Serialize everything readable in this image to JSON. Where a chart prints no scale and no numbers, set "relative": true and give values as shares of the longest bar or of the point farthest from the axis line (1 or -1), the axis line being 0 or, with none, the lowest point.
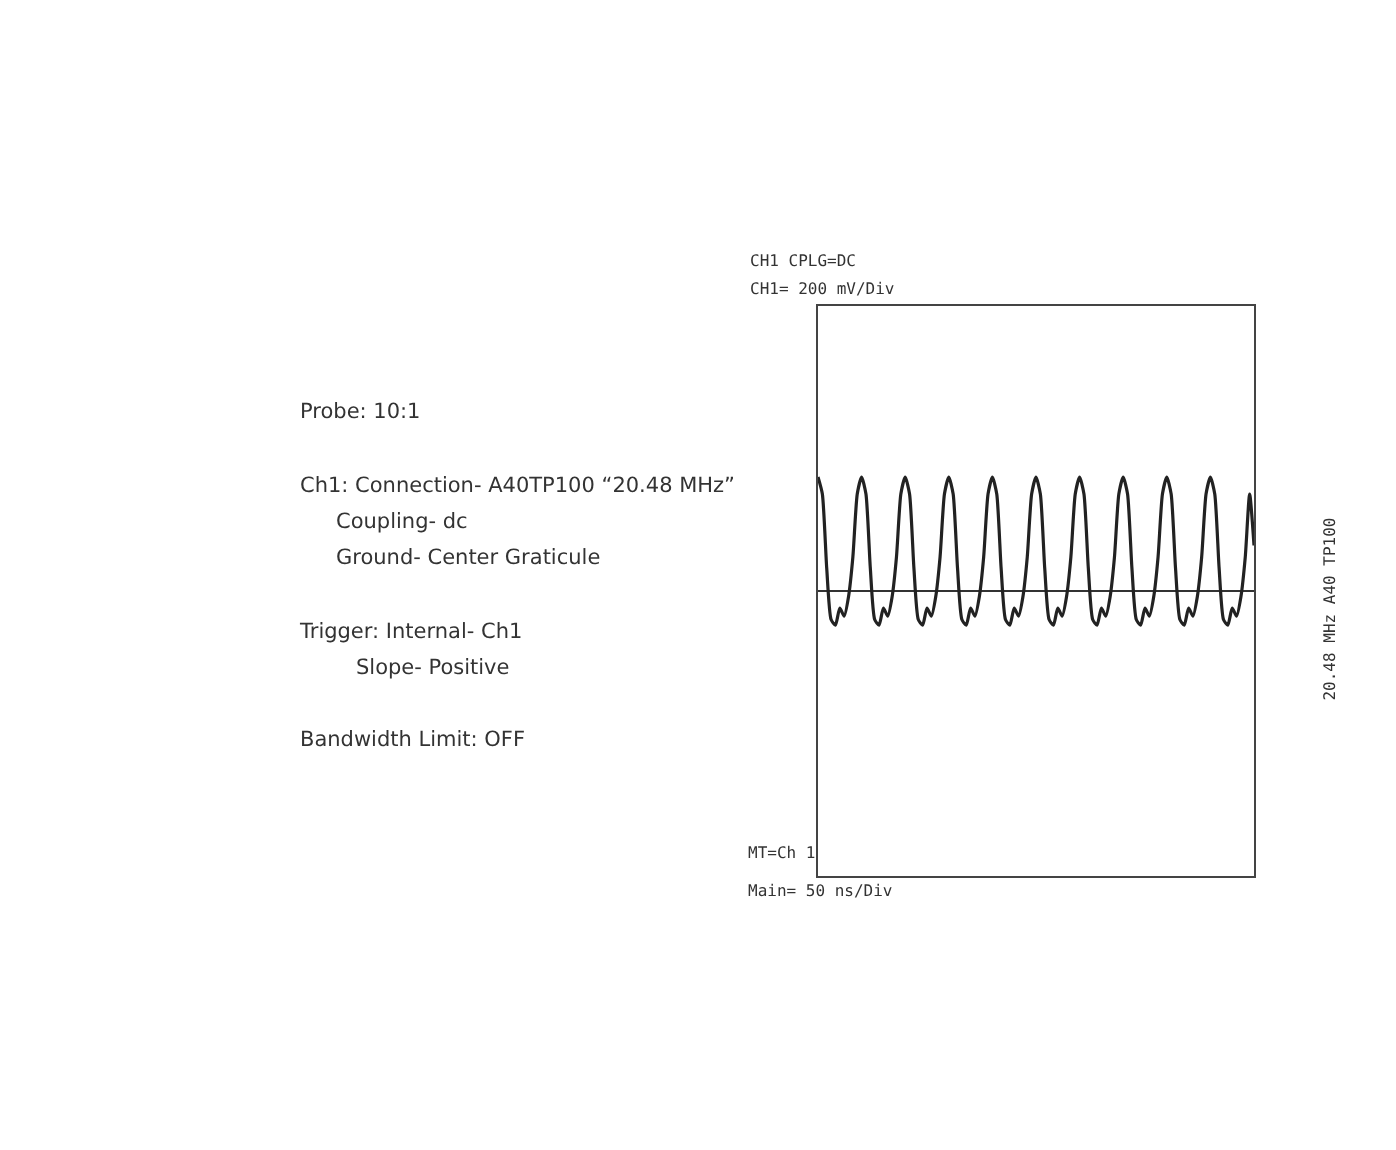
{
  "chart_data": {
    "type": "line",
    "title": "CH1 CPLG=DC",
    "subtitle": "CH1= 200 mV/Div",
    "relative": true,
    "color": "#222222",
    "categories": [
      null,
      null,
      null,
      null,
      null,
      null,
      null,
      null,
      null,
      null,
      null,
      null,
      null,
      null,
      null,
      null,
      null,
      null,
      null,
      null,
      null,
      null,
      null,
      null,
      null,
      null,
      null,
      null,
      null,
      null,
      null,
      null,
      null,
      null,
      null,
      null,
      null,
      null,
      null,
      null,
      null,
      null,
      null,
      null,
      null,
      null,
      null,
      null,
      null,
      null,
      null,
      null,
      null,
      null,
      null,
      null,
      null,
      null,
      null,
      null,
      null,
      null,
      null,
      null,
      null,
      null,
      null,
      null,
      null,
      null,
      null,
      null,
      null,
      null,
      null,
      null,
      null,
      null,
      null,
      null,
      null,
      null,
      null,
      null,
      null,
      null,
      null,
      null,
      null,
      null,
      null,
      null,
      null,
      null,
      null,
      null,
      null,
      null,
      null,
      null,
      null
    ],
    "values": [
      1.0,
      0.85,
      0.2,
      -0.25,
      -0.3,
      -0.15,
      -0.22,
      -0.05,
      0.3,
      0.85,
      1.0,
      0.85,
      0.2,
      -0.25,
      -0.3,
      -0.15,
      -0.22,
      -0.05,
      0.3,
      0.85,
      1.0,
      0.85,
      0.2,
      -0.25,
      -0.3,
      -0.15,
      -0.22,
      -0.05,
      0.3,
      0.85,
      1.0,
      0.85,
      0.2,
      -0.25,
      -0.3,
      -0.15,
      -0.22,
      -0.05,
      0.3,
      0.85,
      1.0,
      0.85,
      0.2,
      -0.25,
      -0.3,
      -0.15,
      -0.22,
      -0.05,
      0.3,
      0.85,
      1.0,
      0.85,
      0.2,
      -0.25,
      -0.3,
      -0.15,
      -0.22,
      -0.05,
      0.3,
      0.85,
      1.0,
      0.85,
      0.2,
      -0.25,
      -0.3,
      -0.15,
      -0.22,
      -0.05,
      0.3,
      0.85,
      1.0,
      0.85,
      0.2,
      -0.25,
      -0.3,
      -0.15,
      -0.22,
      -0.05,
      0.3,
      0.85,
      1.0,
      0.85,
      0.2,
      -0.25,
      -0.3,
      -0.15,
      -0.22,
      -0.05,
      0.3,
      0.85,
      1.0,
      0.85,
      0.2,
      -0.25,
      -0.3,
      -0.15,
      -0.22,
      -0.05,
      0.3,
      0.85,
      0.4
    ],
    "annotations": [
      "Probe: 10:1",
      "Ch1: Connection- A40TP100 “20.48 MHz”",
      "Coupling- dc",
      "Ground- Center Graticule",
      "Trigger: Internal- Ch1",
      "Slope- Positive",
      "Bandwidth Limit: OFF",
      "MT=Ch 1",
      "Main= 50 ns/Div",
      "20.48 MHz A40 TP100"
    ]
  }
}
